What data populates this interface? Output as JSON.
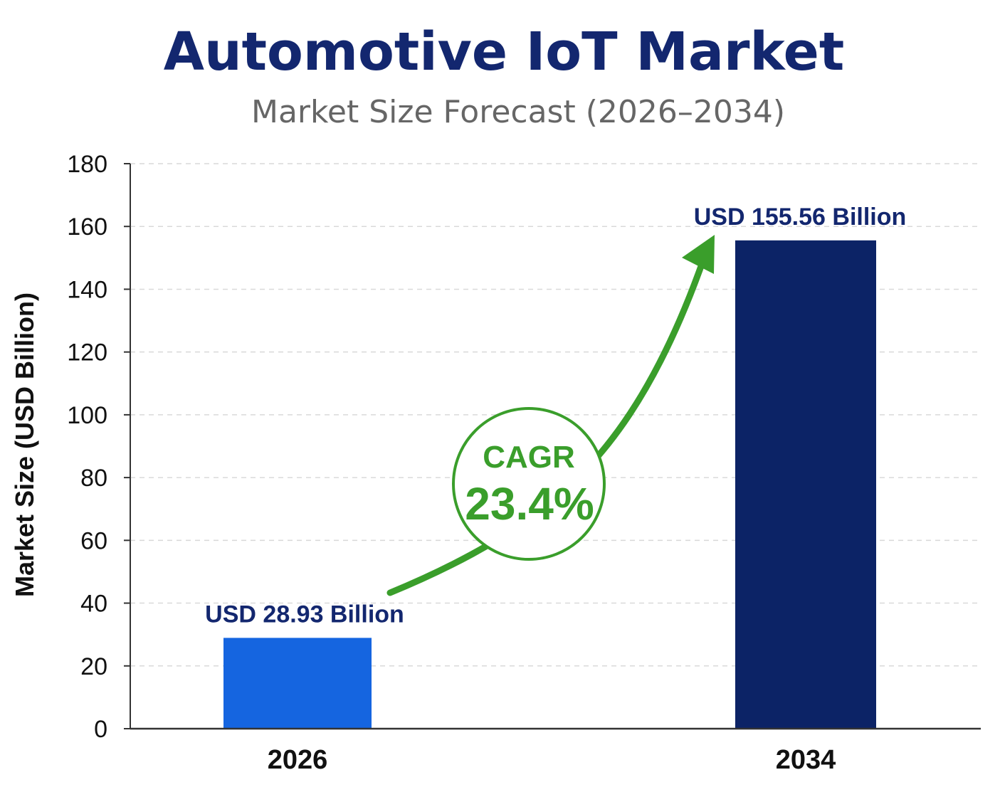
{
  "chart_data": {
    "type": "bar",
    "title": "Automotive IoT Market",
    "subtitle": "Market Size Forecast (2026–2034)",
    "ylabel": "Market Size (USD Billion)",
    "xlabel": "",
    "ylim": [
      0,
      180
    ],
    "yticks": [
      0,
      20,
      40,
      60,
      80,
      100,
      120,
      140,
      160,
      180
    ],
    "grid": true,
    "categories": [
      "2026",
      "2034"
    ],
    "values": [
      28.93,
      155.56
    ],
    "data_labels": [
      "USD 28.93 Billion",
      "USD 155.56 Billion"
    ],
    "bar_colors": [
      "#1565e0",
      "#0c2366"
    ],
    "annotation": {
      "label": "CAGR",
      "value": "23.4%",
      "color": "#3a9e2b"
    }
  },
  "colors": {
    "title": "#13276f",
    "subtitle": "#666666",
    "grid": "#d9d9d9",
    "axis": "#333333",
    "data_label": "#13276f",
    "arrow": "#3a9e2b"
  }
}
